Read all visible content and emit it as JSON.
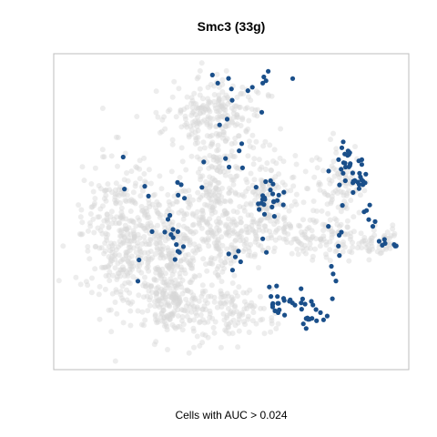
{
  "chart_data": {
    "type": "scatter",
    "title": "Smc3 (33g)",
    "caption": "Cells with AUC > 0.024",
    "grid": false,
    "colors": {
      "background_cells": "#d6d6d6",
      "highlight_cells": "#1a4f8a",
      "frame": "#bdbdbd"
    },
    "series": [
      {
        "role": "background",
        "regions": [
          {
            "cx": 0.2,
            "cy": 0.58,
            "rx": 0.1,
            "ry": 0.2,
            "n": 380
          },
          {
            "cx": 0.33,
            "cy": 0.62,
            "rx": 0.07,
            "ry": 0.17,
            "n": 230
          },
          {
            "cx": 0.45,
            "cy": 0.44,
            "rx": 0.06,
            "ry": 0.2,
            "n": 220
          },
          {
            "cx": 0.45,
            "cy": 0.18,
            "rx": 0.12,
            "ry": 0.08,
            "n": 200
          },
          {
            "cx": 0.6,
            "cy": 0.45,
            "rx": 0.07,
            "ry": 0.12,
            "n": 160
          },
          {
            "cx": 0.34,
            "cy": 0.79,
            "rx": 0.08,
            "ry": 0.09,
            "n": 140
          },
          {
            "cx": 0.5,
            "cy": 0.82,
            "rx": 0.1,
            "ry": 0.07,
            "n": 120
          },
          {
            "cx": 0.72,
            "cy": 0.58,
            "rx": 0.14,
            "ry": 0.06,
            "n": 120
          },
          {
            "cx": 0.8,
            "cy": 0.44,
            "rx": 0.06,
            "ry": 0.13,
            "n": 110
          },
          {
            "cx": 0.92,
            "cy": 0.6,
            "rx": 0.05,
            "ry": 0.04,
            "n": 40
          },
          {
            "cx": 0.5,
            "cy": 0.6,
            "rx": 0.12,
            "ry": 0.1,
            "n": 120
          }
        ]
      },
      {
        "role": "highlight",
        "regions": [
          {
            "cx": 0.67,
            "cy": 0.8,
            "rx": 0.07,
            "ry": 0.05,
            "n": 28
          },
          {
            "cx": 0.72,
            "cy": 0.84,
            "rx": 0.03,
            "ry": 0.02,
            "n": 10
          },
          {
            "cx": 0.83,
            "cy": 0.36,
            "rx": 0.04,
            "ry": 0.05,
            "n": 26
          },
          {
            "cx": 0.86,
            "cy": 0.4,
            "rx": 0.02,
            "ry": 0.03,
            "n": 12
          },
          {
            "cx": 0.6,
            "cy": 0.46,
            "rx": 0.06,
            "ry": 0.06,
            "n": 24
          },
          {
            "cx": 0.34,
            "cy": 0.61,
            "rx": 0.02,
            "ry": 0.06,
            "n": 10
          },
          {
            "cx": 0.48,
            "cy": 0.11,
            "rx": 0.03,
            "ry": 0.04,
            "n": 5
          },
          {
            "cx": 0.61,
            "cy": 0.08,
            "rx": 0.04,
            "ry": 0.06,
            "n": 6
          },
          {
            "cx": 0.93,
            "cy": 0.6,
            "rx": 0.03,
            "ry": 0.02,
            "n": 7
          },
          {
            "cx": 0.88,
            "cy": 0.52,
            "rx": 0.04,
            "ry": 0.05,
            "n": 7
          },
          {
            "cx": 0.24,
            "cy": 0.58,
            "rx": 0.07,
            "ry": 0.14,
            "n": 8
          },
          {
            "cx": 0.51,
            "cy": 0.25,
            "rx": 0.06,
            "ry": 0.1,
            "n": 10
          },
          {
            "cx": 0.79,
            "cy": 0.62,
            "rx": 0.03,
            "ry": 0.1,
            "n": 8
          },
          {
            "cx": 0.38,
            "cy": 0.45,
            "rx": 0.05,
            "ry": 0.08,
            "n": 6
          },
          {
            "cx": 0.55,
            "cy": 0.64,
            "rx": 0.06,
            "ry": 0.06,
            "n": 8
          }
        ]
      }
    ]
  }
}
